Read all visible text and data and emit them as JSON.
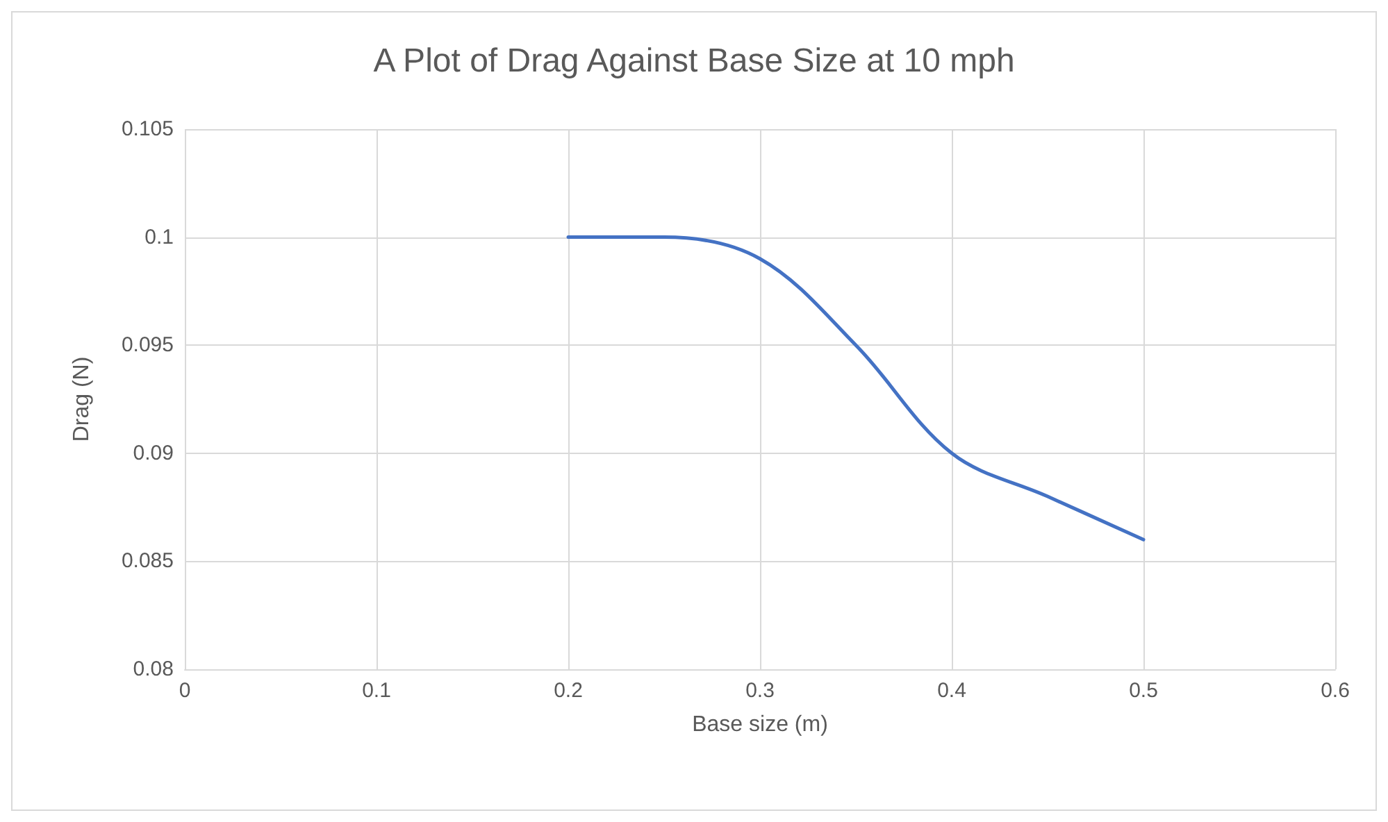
{
  "chart_data": {
    "type": "line",
    "title": "A Plot of Drag Against Base Size at 10 mph",
    "xlabel": "Base size (m)",
    "ylabel": "Drag (N)",
    "x": [
      0.2,
      0.25,
      0.3,
      0.35,
      0.4,
      0.45,
      0.5
    ],
    "series": [
      {
        "color": "#4472c4",
        "values": [
          0.1,
          0.1,
          0.099,
          0.095,
          0.09,
          0.088,
          0.086
        ]
      }
    ],
    "xlim": [
      0,
      0.6
    ],
    "xticks": [
      0,
      0.1,
      0.2,
      0.3,
      0.4,
      0.5,
      0.6
    ],
    "ylim": [
      0.08,
      0.105
    ],
    "yticks": [
      0.08,
      0.085,
      0.09,
      0.095,
      0.1,
      0.105
    ],
    "grid": true,
    "marker": "none",
    "line_style": "solid"
  }
}
